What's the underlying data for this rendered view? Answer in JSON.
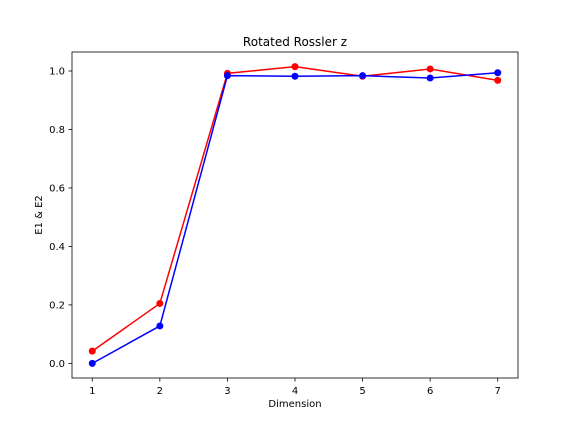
{
  "chart_data": {
    "type": "line",
    "title": "Rotated Rossler z",
    "xlabel": "Dimension",
    "ylabel": "E1 & E2",
    "x": [
      1,
      2,
      3,
      4,
      5,
      6,
      7
    ],
    "xlim": [
      0.7,
      7.3
    ],
    "ylim": [
      -0.05,
      1.065
    ],
    "xticks": [
      1,
      2,
      3,
      4,
      5,
      6,
      7
    ],
    "yticks": [
      0.0,
      0.2,
      0.4,
      0.6,
      0.8,
      1.0
    ],
    "ytick_labels": [
      "0.0",
      "0.2",
      "0.4",
      "0.6",
      "0.8",
      "1.0"
    ],
    "grid": false,
    "series": [
      {
        "color": "#ff0000",
        "values": [
          0.042,
          0.205,
          0.992,
          1.015,
          0.982,
          1.007,
          0.968
        ]
      },
      {
        "color": "#0000ff",
        "values": [
          0.0,
          0.128,
          0.984,
          0.982,
          0.984,
          0.976,
          0.994
        ]
      }
    ]
  }
}
